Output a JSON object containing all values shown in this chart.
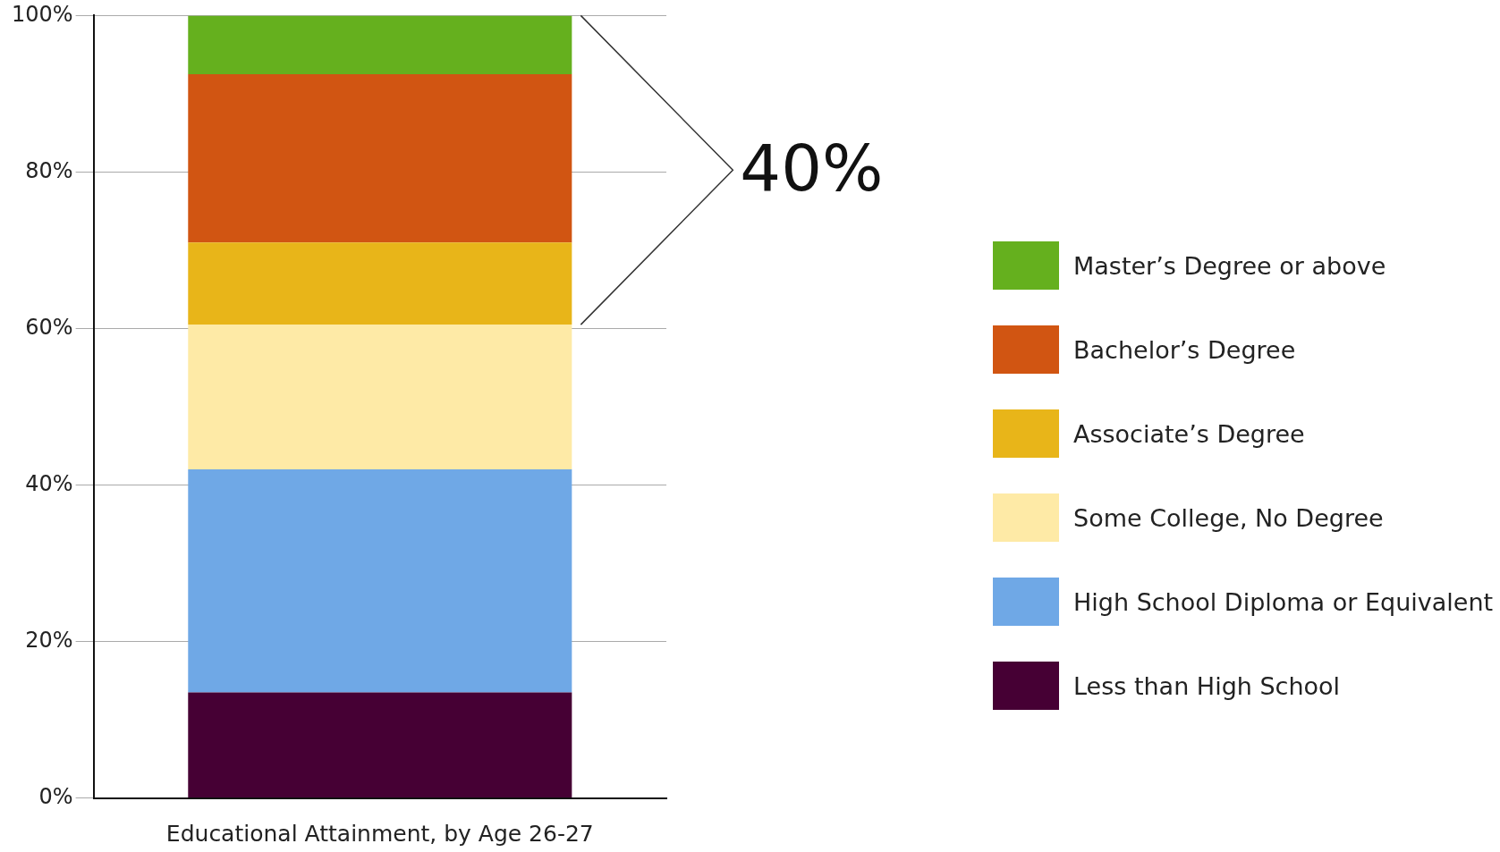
{
  "chart_data": {
    "type": "bar",
    "stacked": true,
    "xlabel": "Educational Attainment, by Age 26-27",
    "categories": [
      null
    ],
    "series": [
      {
        "name": "Less than High School",
        "color": "#460034",
        "values": [
          13.5
        ]
      },
      {
        "name": "High School Diploma or Equivalent",
        "color": "#6fa8e6",
        "values": [
          28.5
        ]
      },
      {
        "name": "Some College, No Degree",
        "color": "#feeaa6",
        "values": [
          18.5
        ]
      },
      {
        "name": "Associate’s Degree",
        "color": "#e8b519",
        "values": [
          10.5
        ]
      },
      {
        "name": "Bachelor’s Degree",
        "color": "#d15512",
        "values": [
          21.5
        ]
      },
      {
        "name": "Master’s Degree or above",
        "color": "#65b01e",
        "values": [
          7.5
        ]
      }
    ],
    "ylim": [
      0,
      100
    ],
    "yticks": [
      {
        "value": 0,
        "label": "0%"
      },
      {
        "value": 20,
        "label": "20%"
      },
      {
        "value": 40,
        "label": "40%"
      },
      {
        "value": 60,
        "label": "60%"
      },
      {
        "value": 80,
        "label": "80%"
      },
      {
        "value": 100,
        "label": "100%"
      }
    ],
    "grid": "y",
    "legend": "right",
    "annotations": [
      "40%"
    ]
  }
}
